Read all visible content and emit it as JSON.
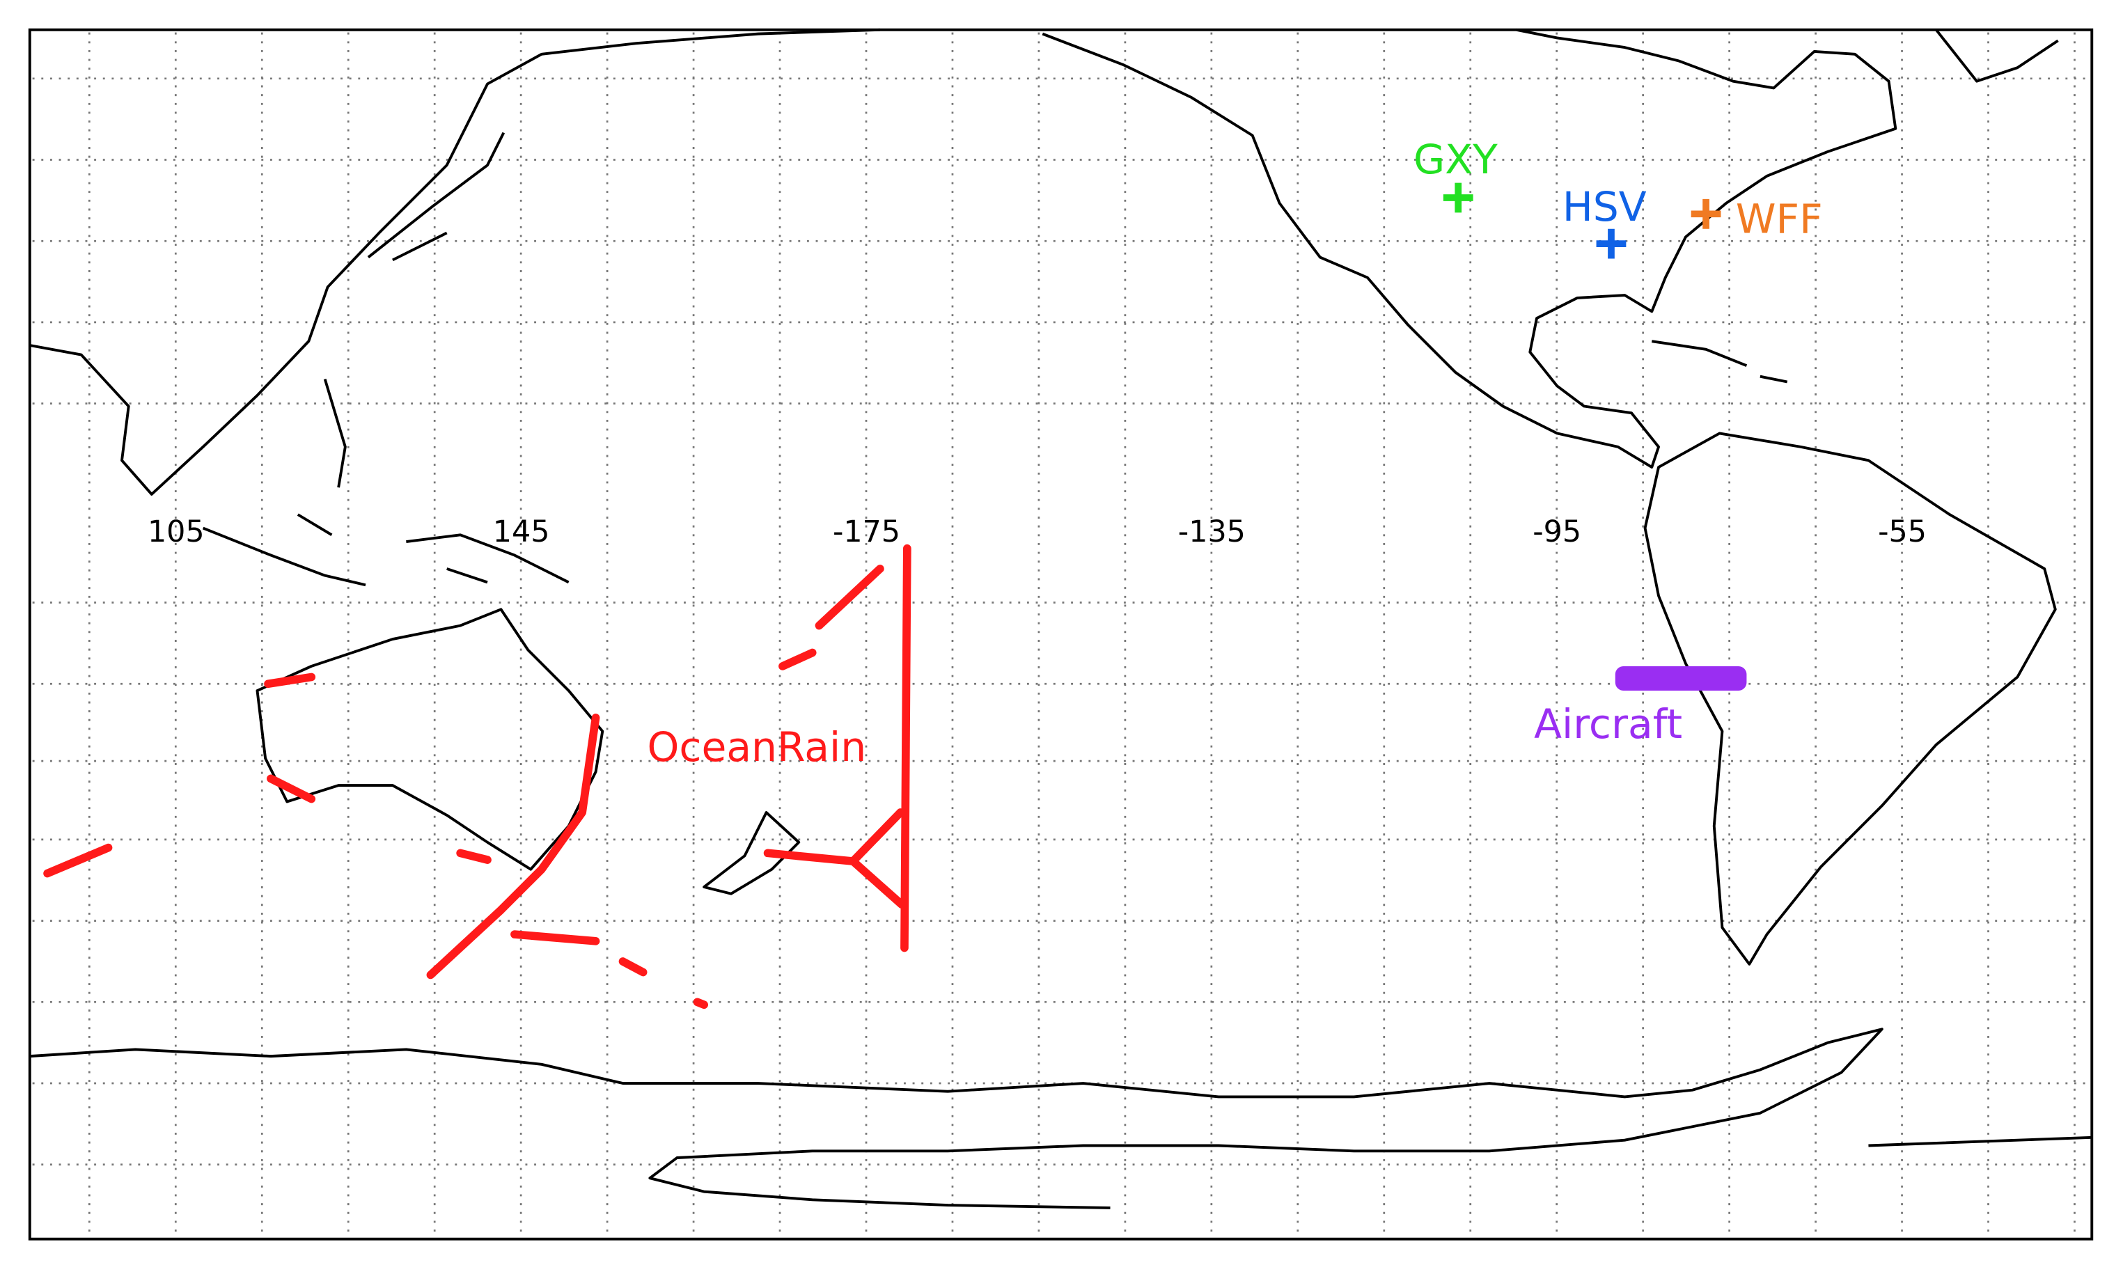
{
  "map": {
    "lon_labels": [
      "105",
      "145",
      "-175",
      "-135",
      "-95",
      "-55"
    ],
    "sites": [
      {
        "label": "GXY",
        "color": "#22e022"
      },
      {
        "label": "HSV",
        "color": "#1062e6"
      },
      {
        "label": "WFF",
        "color": "#f07a22"
      }
    ],
    "ocean_rain": {
      "label": "OceanRain",
      "color": "#ff1a1a"
    },
    "aircraft": {
      "label": "Aircraft",
      "color": "#9a2ef2"
    }
  }
}
